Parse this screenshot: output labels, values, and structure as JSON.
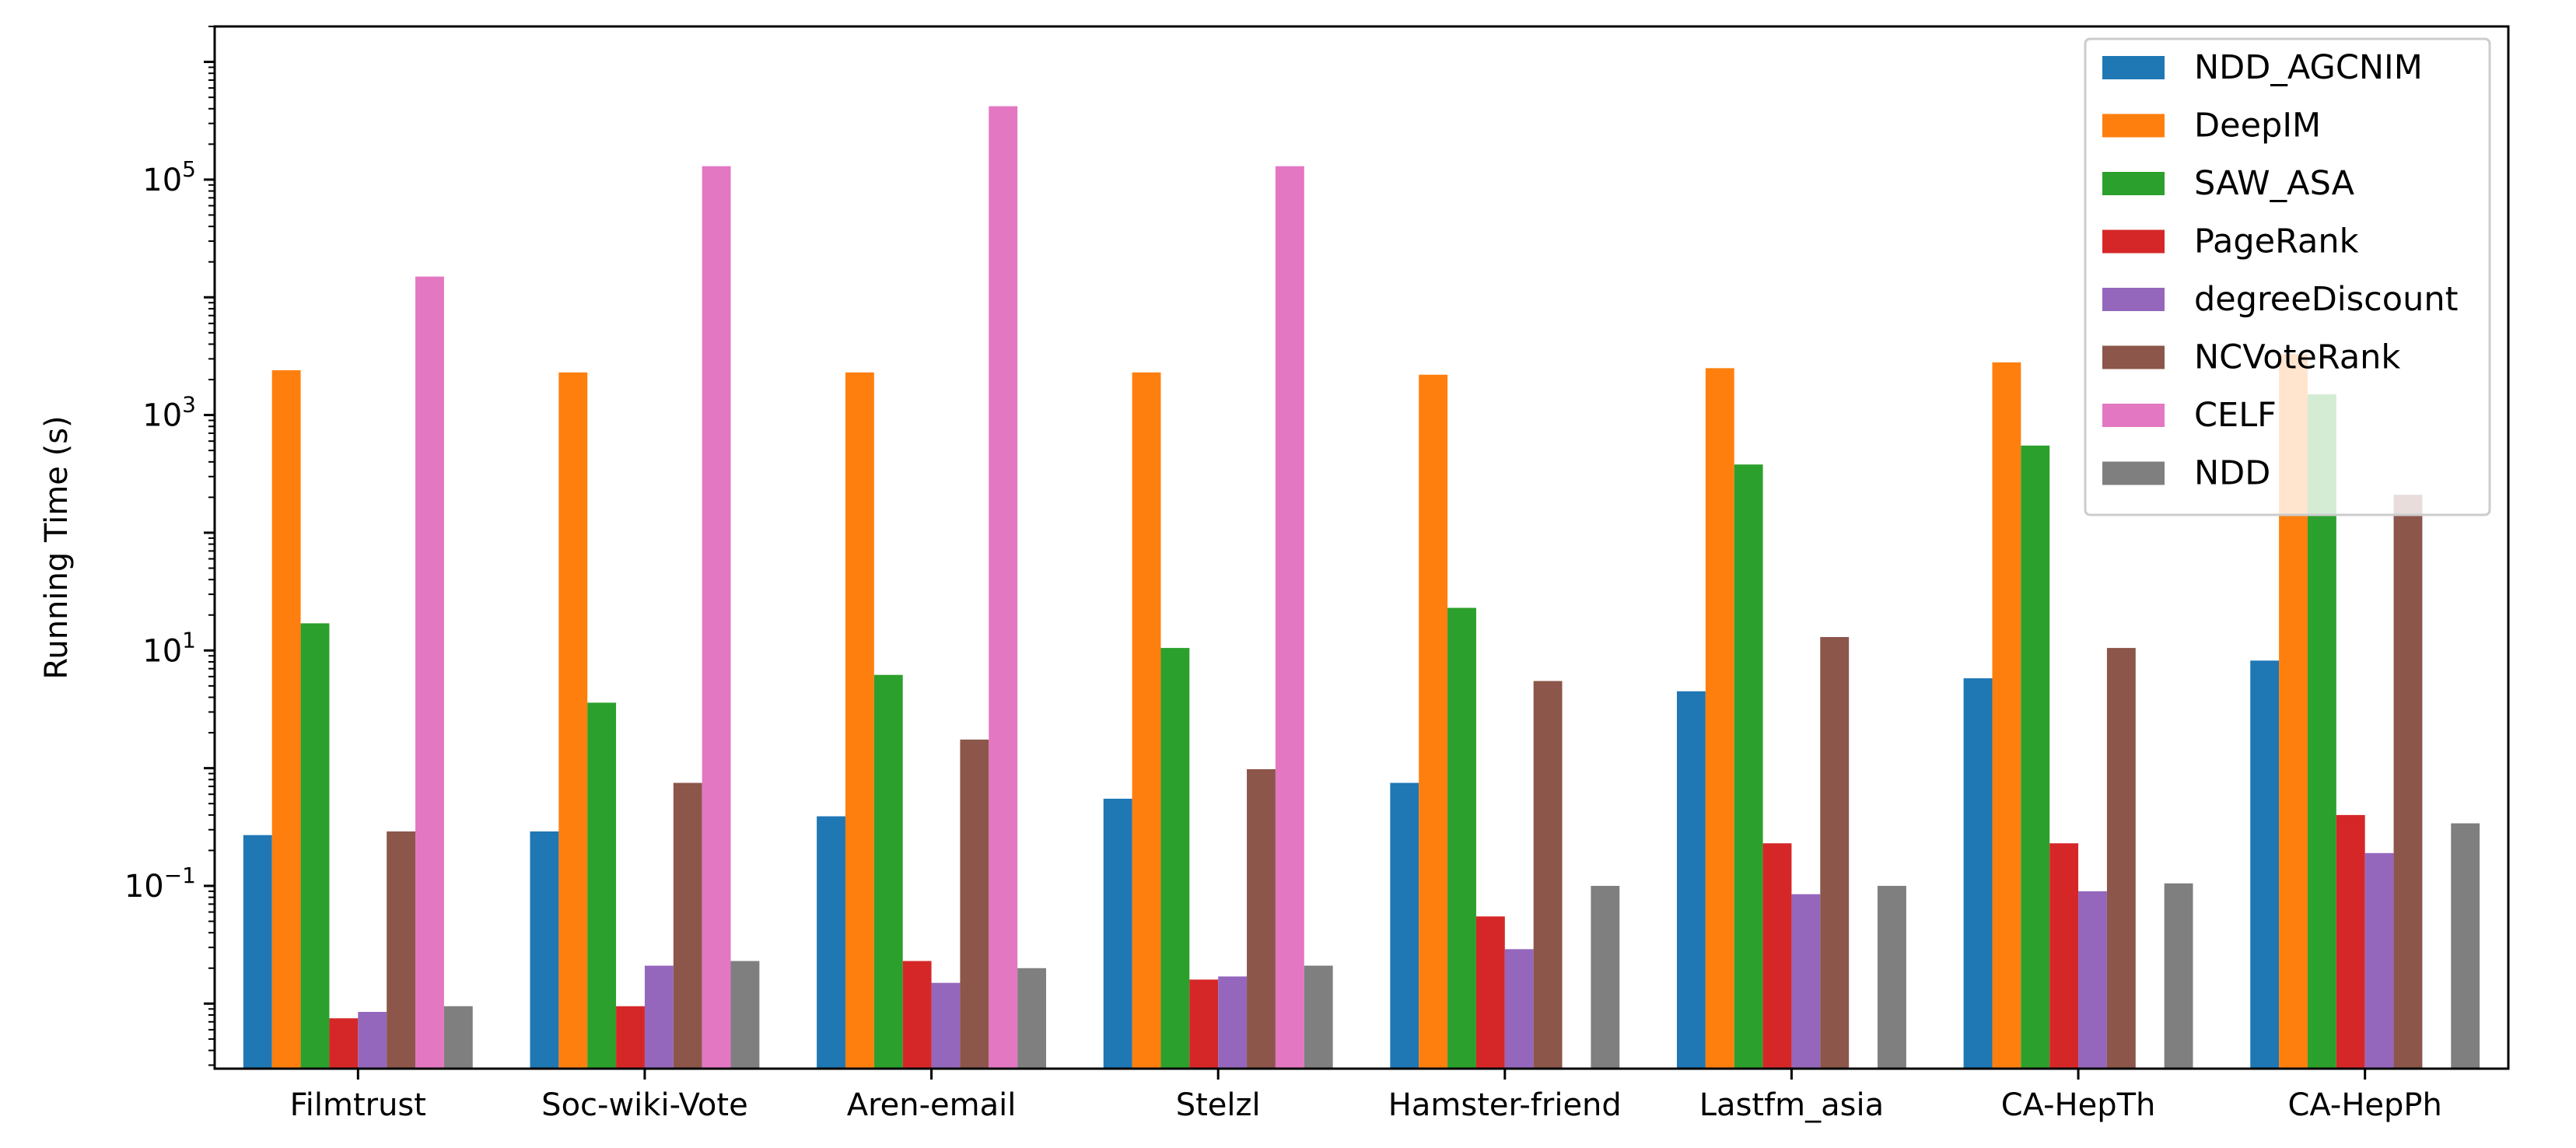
{
  "chart_data": {
    "type": "bar",
    "title": "",
    "xlabel": "",
    "ylabel": "Running Time (s)",
    "yscale": "log",
    "ylim": [
      0.0028,
      2000000
    ],
    "yticks": [
      {
        "value": 0.1,
        "base": "10",
        "exp": "−1"
      },
      {
        "value": 10,
        "base": "10",
        "exp": "1"
      },
      {
        "value": 1000,
        "base": "10",
        "exp": "3"
      },
      {
        "value": 100000,
        "base": "10",
        "exp": "5"
      }
    ],
    "grid": false,
    "legend_position": "top-right",
    "categories": [
      "Filmtrust",
      "Soc-wiki-Vote",
      "Aren-email",
      "Stelzl",
      "Hamster-friend",
      "Lastfm_asia",
      "CA-HepTh",
      "CA-HepPh"
    ],
    "series": [
      {
        "name": "NDD_AGCNIM",
        "color": "#1f77b4",
        "values": [
          0.27,
          0.29,
          0.39,
          0.55,
          0.75,
          4.5,
          5.8,
          8.2
        ]
      },
      {
        "name": "DeepIM",
        "color": "#ff7f0e",
        "values": [
          2400,
          2300,
          2300,
          2300,
          2200,
          2500,
          2800,
          3300
        ]
      },
      {
        "name": "SAW_ASA",
        "color": "#2ca02c",
        "values": [
          17,
          3.6,
          6.2,
          10.5,
          23,
          380,
          550,
          1500
        ]
      },
      {
        "name": "PageRank",
        "color": "#d62728",
        "values": [
          0.0075,
          0.0095,
          0.023,
          0.016,
          0.055,
          0.23,
          0.23,
          0.4
        ]
      },
      {
        "name": "degreeDiscount",
        "color": "#9467bd",
        "values": [
          0.0085,
          0.021,
          0.015,
          0.017,
          0.029,
          0.085,
          0.09,
          0.19
        ]
      },
      {
        "name": "NCVoteRank",
        "color": "#8c564b",
        "values": [
          0.29,
          0.75,
          1.75,
          0.98,
          5.5,
          13,
          10.5,
          210
        ]
      },
      {
        "name": "CELF",
        "color": "#e377c2",
        "values": [
          15000,
          130000,
          420000,
          130000,
          null,
          null,
          null,
          null
        ]
      },
      {
        "name": "NDD",
        "color": "#7f7f7f",
        "values": [
          0.0095,
          0.023,
          0.02,
          0.021,
          0.1,
          0.1,
          0.105,
          0.34
        ]
      }
    ]
  }
}
